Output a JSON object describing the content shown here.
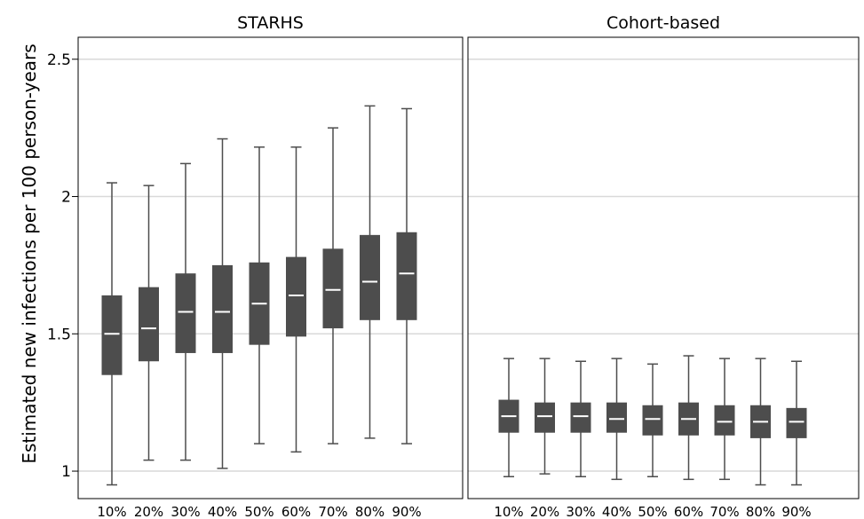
{
  "chart_data": {
    "type": "box",
    "ylabel": "Estimated new infections per 100 person-years",
    "ylim": [
      0.9,
      2.58
    ],
    "yticks": [
      1,
      1.5,
      2,
      2.5
    ],
    "ytick_labels": [
      "1",
      "1.5",
      "2",
      "2.5"
    ],
    "grid": "horizontal",
    "colors": {
      "box": "#4d4d4d",
      "median": "#ffffff",
      "whisker": "#4d4d4d",
      "grid": "#d9d9d9",
      "frame": "#000000"
    },
    "categories": [
      "10%",
      "20%",
      "30%",
      "40%",
      "50%",
      "60%",
      "70%",
      "80%",
      "90%"
    ],
    "panels": [
      {
        "title": "STARHS",
        "boxes": [
          {
            "category": "10%",
            "whisker_low": 0.95,
            "q1": 1.35,
            "median": 1.5,
            "q3": 1.64,
            "whisker_high": 2.05
          },
          {
            "category": "20%",
            "whisker_low": 1.04,
            "q1": 1.4,
            "median": 1.52,
            "q3": 1.67,
            "whisker_high": 2.04
          },
          {
            "category": "30%",
            "whisker_low": 1.04,
            "q1": 1.43,
            "median": 1.58,
            "q3": 1.72,
            "whisker_high": 2.12
          },
          {
            "category": "40%",
            "whisker_low": 1.01,
            "q1": 1.43,
            "median": 1.58,
            "q3": 1.75,
            "whisker_high": 2.21
          },
          {
            "category": "50%",
            "whisker_low": 1.1,
            "q1": 1.46,
            "median": 1.61,
            "q3": 1.76,
            "whisker_high": 2.18
          },
          {
            "category": "60%",
            "whisker_low": 1.07,
            "q1": 1.49,
            "median": 1.64,
            "q3": 1.78,
            "whisker_high": 2.18
          },
          {
            "category": "70%",
            "whisker_low": 1.1,
            "q1": 1.52,
            "median": 1.66,
            "q3": 1.81,
            "whisker_high": 2.25
          },
          {
            "category": "80%",
            "whisker_low": 1.12,
            "q1": 1.55,
            "median": 1.69,
            "q3": 1.86,
            "whisker_high": 2.33
          },
          {
            "category": "90%",
            "whisker_low": 1.1,
            "q1": 1.55,
            "median": 1.72,
            "q3": 1.87,
            "whisker_high": 2.32
          }
        ]
      },
      {
        "title": "Cohort-based",
        "boxes": [
          {
            "category": "10%",
            "whisker_low": 0.98,
            "q1": 1.14,
            "median": 1.2,
            "q3": 1.26,
            "whisker_high": 1.41
          },
          {
            "category": "20%",
            "whisker_low": 0.99,
            "q1": 1.14,
            "median": 1.2,
            "q3": 1.25,
            "whisker_high": 1.41
          },
          {
            "category": "30%",
            "whisker_low": 0.98,
            "q1": 1.14,
            "median": 1.2,
            "q3": 1.25,
            "whisker_high": 1.4
          },
          {
            "category": "40%",
            "whisker_low": 0.97,
            "q1": 1.14,
            "median": 1.19,
            "q3": 1.25,
            "whisker_high": 1.41
          },
          {
            "category": "50%",
            "whisker_low": 0.98,
            "q1": 1.13,
            "median": 1.19,
            "q3": 1.24,
            "whisker_high": 1.39
          },
          {
            "category": "60%",
            "whisker_low": 0.97,
            "q1": 1.13,
            "median": 1.19,
            "q3": 1.25,
            "whisker_high": 1.42
          },
          {
            "category": "70%",
            "whisker_low": 0.97,
            "q1": 1.13,
            "median": 1.18,
            "q3": 1.24,
            "whisker_high": 1.41
          },
          {
            "category": "80%",
            "whisker_low": 0.95,
            "q1": 1.12,
            "median": 1.18,
            "q3": 1.24,
            "whisker_high": 1.41
          },
          {
            "category": "90%",
            "whisker_low": 0.95,
            "q1": 1.12,
            "median": 1.18,
            "q3": 1.23,
            "whisker_high": 1.4
          }
        ]
      }
    ]
  }
}
